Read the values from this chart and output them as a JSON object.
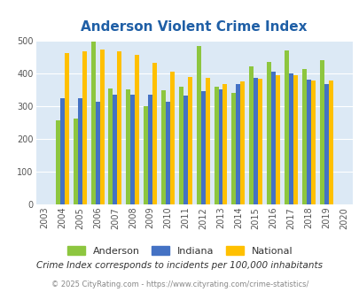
{
  "title": "Anderson Violent Crime Index",
  "full_years": [
    2003,
    2004,
    2005,
    2006,
    2007,
    2008,
    2009,
    2010,
    2011,
    2012,
    2013,
    2014,
    2015,
    2016,
    2017,
    2018,
    2019,
    2020
  ],
  "valid_years": [
    2004,
    2005,
    2006,
    2007,
    2008,
    2009,
    2010,
    2011,
    2012,
    2013,
    2014,
    2015,
    2016,
    2017,
    2018,
    2019
  ],
  "anderson": [
    258,
    262,
    498,
    355,
    352,
    300,
    350,
    360,
    483,
    360,
    342,
    422,
    435,
    472,
    415,
    442
  ],
  "indiana": [
    325,
    325,
    313,
    335,
    336,
    336,
    315,
    332,
    347,
    352,
    367,
    386,
    405,
    400,
    382,
    368
  ],
  "national": [
    463,
    469,
    474,
    467,
    456,
    432,
    406,
    389,
    387,
    368,
    376,
    383,
    395,
    395,
    379,
    379
  ],
  "anderson_color": "#8dc63f",
  "indiana_color": "#4472c4",
  "national_color": "#ffc000",
  "bg_color": "#dce9f5",
  "title_color": "#1f5fa6",
  "subtitle_color": "#333333",
  "footer_color": "#888888",
  "subtitle": "Crime Index corresponds to incidents per 100,000 inhabitants",
  "footer": "© 2025 CityRating.com - https://www.cityrating.com/crime-statistics/",
  "ylim": [
    0,
    500
  ],
  "yticks": [
    0,
    100,
    200,
    300,
    400,
    500
  ],
  "bar_width": 0.25
}
